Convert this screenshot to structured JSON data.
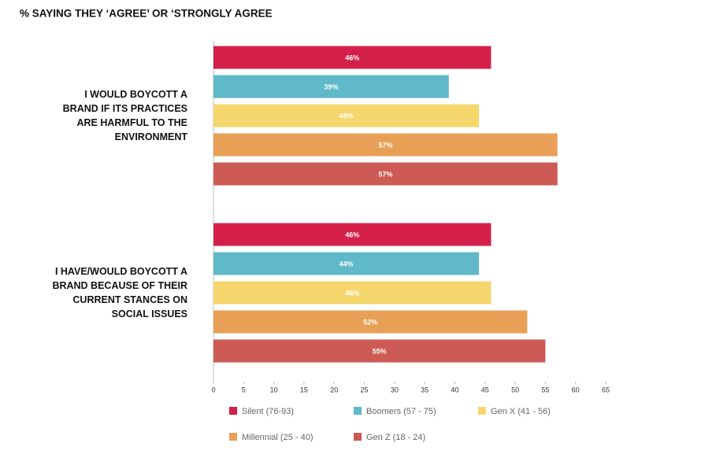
{
  "chart_data": {
    "type": "bar",
    "orientation": "horizontal",
    "title": "% SAYING THEY ‘AGREE’ OR ‘STRONGLY AGREE",
    "categories": [
      "I WOULD BOYCOTT A BRAND IF ITS PRACTICES ARE HARMFUL TO THE ENVIRONMENT",
      "I HAVE/WOULD BOYCOTT A BRAND BECAUSE OF THEIR CURRENT STANCES ON SOCIAL ISSUES"
    ],
    "series": [
      {
        "name": "Silent (76-93)",
        "color": "#d42048",
        "values": [
          46,
          46
        ],
        "value_labels": [
          "46%",
          "46%"
        ]
      },
      {
        "name": "Boomers (57 - 75)",
        "color": "#5fb9c9",
        "values": [
          39,
          44
        ],
        "value_labels": [
          "39%",
          "44%"
        ]
      },
      {
        "name": "Gen X (41 - 56)",
        "color": "#f5d76e",
        "values": [
          44,
          46
        ],
        "value_labels": [
          "44%",
          "46%"
        ]
      },
      {
        "name": "Millennial (25 - 40)",
        "color": "#e8a057",
        "values": [
          57,
          52
        ],
        "value_labels": [
          "57%",
          "52%"
        ]
      },
      {
        "name": "Gen Z (18 - 24)",
        "color": "#cd5a54",
        "values": [
          57,
          55
        ],
        "value_labels": [
          "57%",
          "55%"
        ]
      }
    ],
    "xlim": [
      0,
      65
    ],
    "xticks": [
      0,
      5,
      10,
      15,
      20,
      25,
      30,
      35,
      40,
      45,
      50,
      55,
      60,
      65
    ],
    "grid": false
  }
}
